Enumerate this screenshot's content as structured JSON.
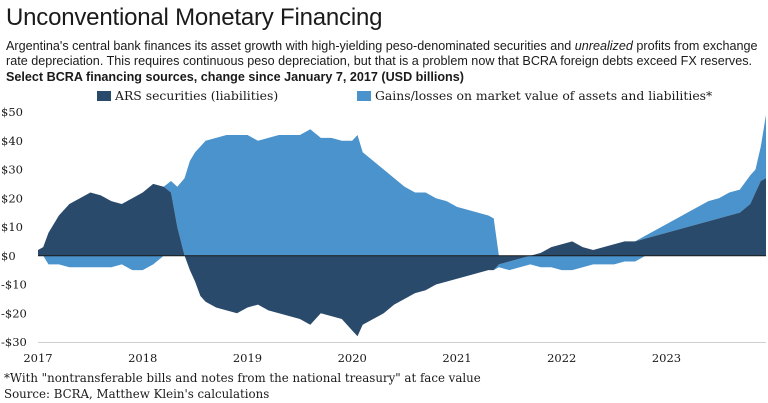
{
  "title": "Unconventional Monetary Financing",
  "subtitle": {
    "part1": "Argentina's central bank finances its asset growth with high-yielding peso-denominated securities and ",
    "emphasis": "unrealized",
    "part2": " profits from exchange rate depreciation. This requires continuous peso depreciation, but that is a problem now that BCRA foreign debts exceed FX reserves."
  },
  "chart_heading": "Select BCRA financing sources, change since January 7, 2017 (USD billions)",
  "footnote": "*With \"nontransferable bills and notes from the national treasury\" at face value",
  "source": "Source: BCRA, Matthew Klein's calculations",
  "colors": {
    "ars": "#2a4a6b",
    "gains": "#4a93cc",
    "zero_line": "#1a1a1a"
  },
  "chart_data": {
    "type": "area",
    "stacked": true,
    "title": "Select BCRA financing sources, change since January 7, 2017 (USD billions)",
    "xlabel": "",
    "ylabel": "",
    "xlim": [
      2017.0,
      2023.95
    ],
    "ylim": [
      -30,
      50
    ],
    "yticks": [
      -30,
      -20,
      -10,
      0,
      10,
      20,
      30,
      40,
      50
    ],
    "ytick_labels": [
      "-$30",
      "-$20",
      "-$10",
      "$0",
      "$10",
      "$20",
      "$30",
      "$40",
      "$50"
    ],
    "xticks": [
      2017,
      2018,
      2019,
      2020,
      2021,
      2022,
      2023
    ],
    "xtick_labels": [
      "2017",
      "2018",
      "2019",
      "2020",
      "2021",
      "2022",
      "2023"
    ],
    "legend": "top",
    "grid": false,
    "x": [
      2017.0,
      2017.05,
      2017.1,
      2017.2,
      2017.3,
      2017.4,
      2017.5,
      2017.6,
      2017.7,
      2017.8,
      2017.9,
      2018.0,
      2018.1,
      2018.2,
      2018.27,
      2018.33,
      2018.4,
      2018.45,
      2018.5,
      2018.55,
      2018.6,
      2018.7,
      2018.8,
      2018.9,
      2019.0,
      2019.1,
      2019.2,
      2019.3,
      2019.4,
      2019.5,
      2019.6,
      2019.7,
      2019.8,
      2019.9,
      2020.0,
      2020.05,
      2020.1,
      2020.2,
      2020.3,
      2020.4,
      2020.5,
      2020.6,
      2020.7,
      2020.8,
      2020.9,
      2021.0,
      2021.1,
      2021.2,
      2021.3,
      2021.35,
      2021.4,
      2021.5,
      2021.6,
      2021.7,
      2021.8,
      2021.9,
      2022.0,
      2022.1,
      2022.2,
      2022.3,
      2022.4,
      2022.5,
      2022.6,
      2022.7,
      2022.8,
      2022.9,
      2023.0,
      2023.1,
      2023.2,
      2023.3,
      2023.4,
      2023.5,
      2023.6,
      2023.7,
      2023.8,
      2023.85,
      2023.9,
      2023.95
    ],
    "series": [
      {
        "name": "ARS securities (liabilities)",
        "values": [
          2,
          3,
          8,
          14,
          18,
          20,
          22,
          21,
          19,
          18,
          20,
          22,
          25,
          24,
          22,
          10,
          0,
          -5,
          -9,
          -14,
          -16,
          -18,
          -19,
          -20,
          -18,
          -17,
          -19,
          -20,
          -21,
          -22,
          -24,
          -20,
          -21,
          -22,
          -26,
          -28,
          -24,
          -22,
          -20,
          -17,
          -15,
          -13,
          -12,
          -10,
          -9,
          -8,
          -7,
          -6,
          -5,
          -5,
          -3,
          -2,
          -1,
          0,
          1,
          3,
          4,
          5,
          3,
          2,
          3,
          4,
          5,
          5,
          6,
          7,
          8,
          9,
          10,
          11,
          12,
          13,
          14,
          15,
          18,
          22,
          26,
          27
        ]
      },
      {
        "name": "Gains/losses on market value of assets and liabilities*",
        "values": [
          0,
          0,
          -3,
          -3,
          -4,
          -4,
          -4,
          -4,
          -4,
          -3,
          -5,
          -5,
          -3,
          0,
          4,
          14,
          27,
          33,
          36,
          38,
          40,
          41,
          42,
          42,
          42,
          40,
          41,
          42,
          42,
          42,
          44,
          41,
          41,
          40,
          40,
          42,
          36,
          33,
          30,
          27,
          24,
          22,
          22,
          20,
          19,
          17,
          16,
          15,
          14,
          13,
          -1,
          -3,
          -3,
          -3,
          -4,
          -4,
          -5,
          -5,
          -4,
          -3,
          -3,
          -3,
          -2,
          -2,
          1,
          2,
          3,
          4,
          5,
          6,
          7,
          7,
          8,
          8,
          10,
          8,
          12,
          22
        ]
      }
    ]
  }
}
